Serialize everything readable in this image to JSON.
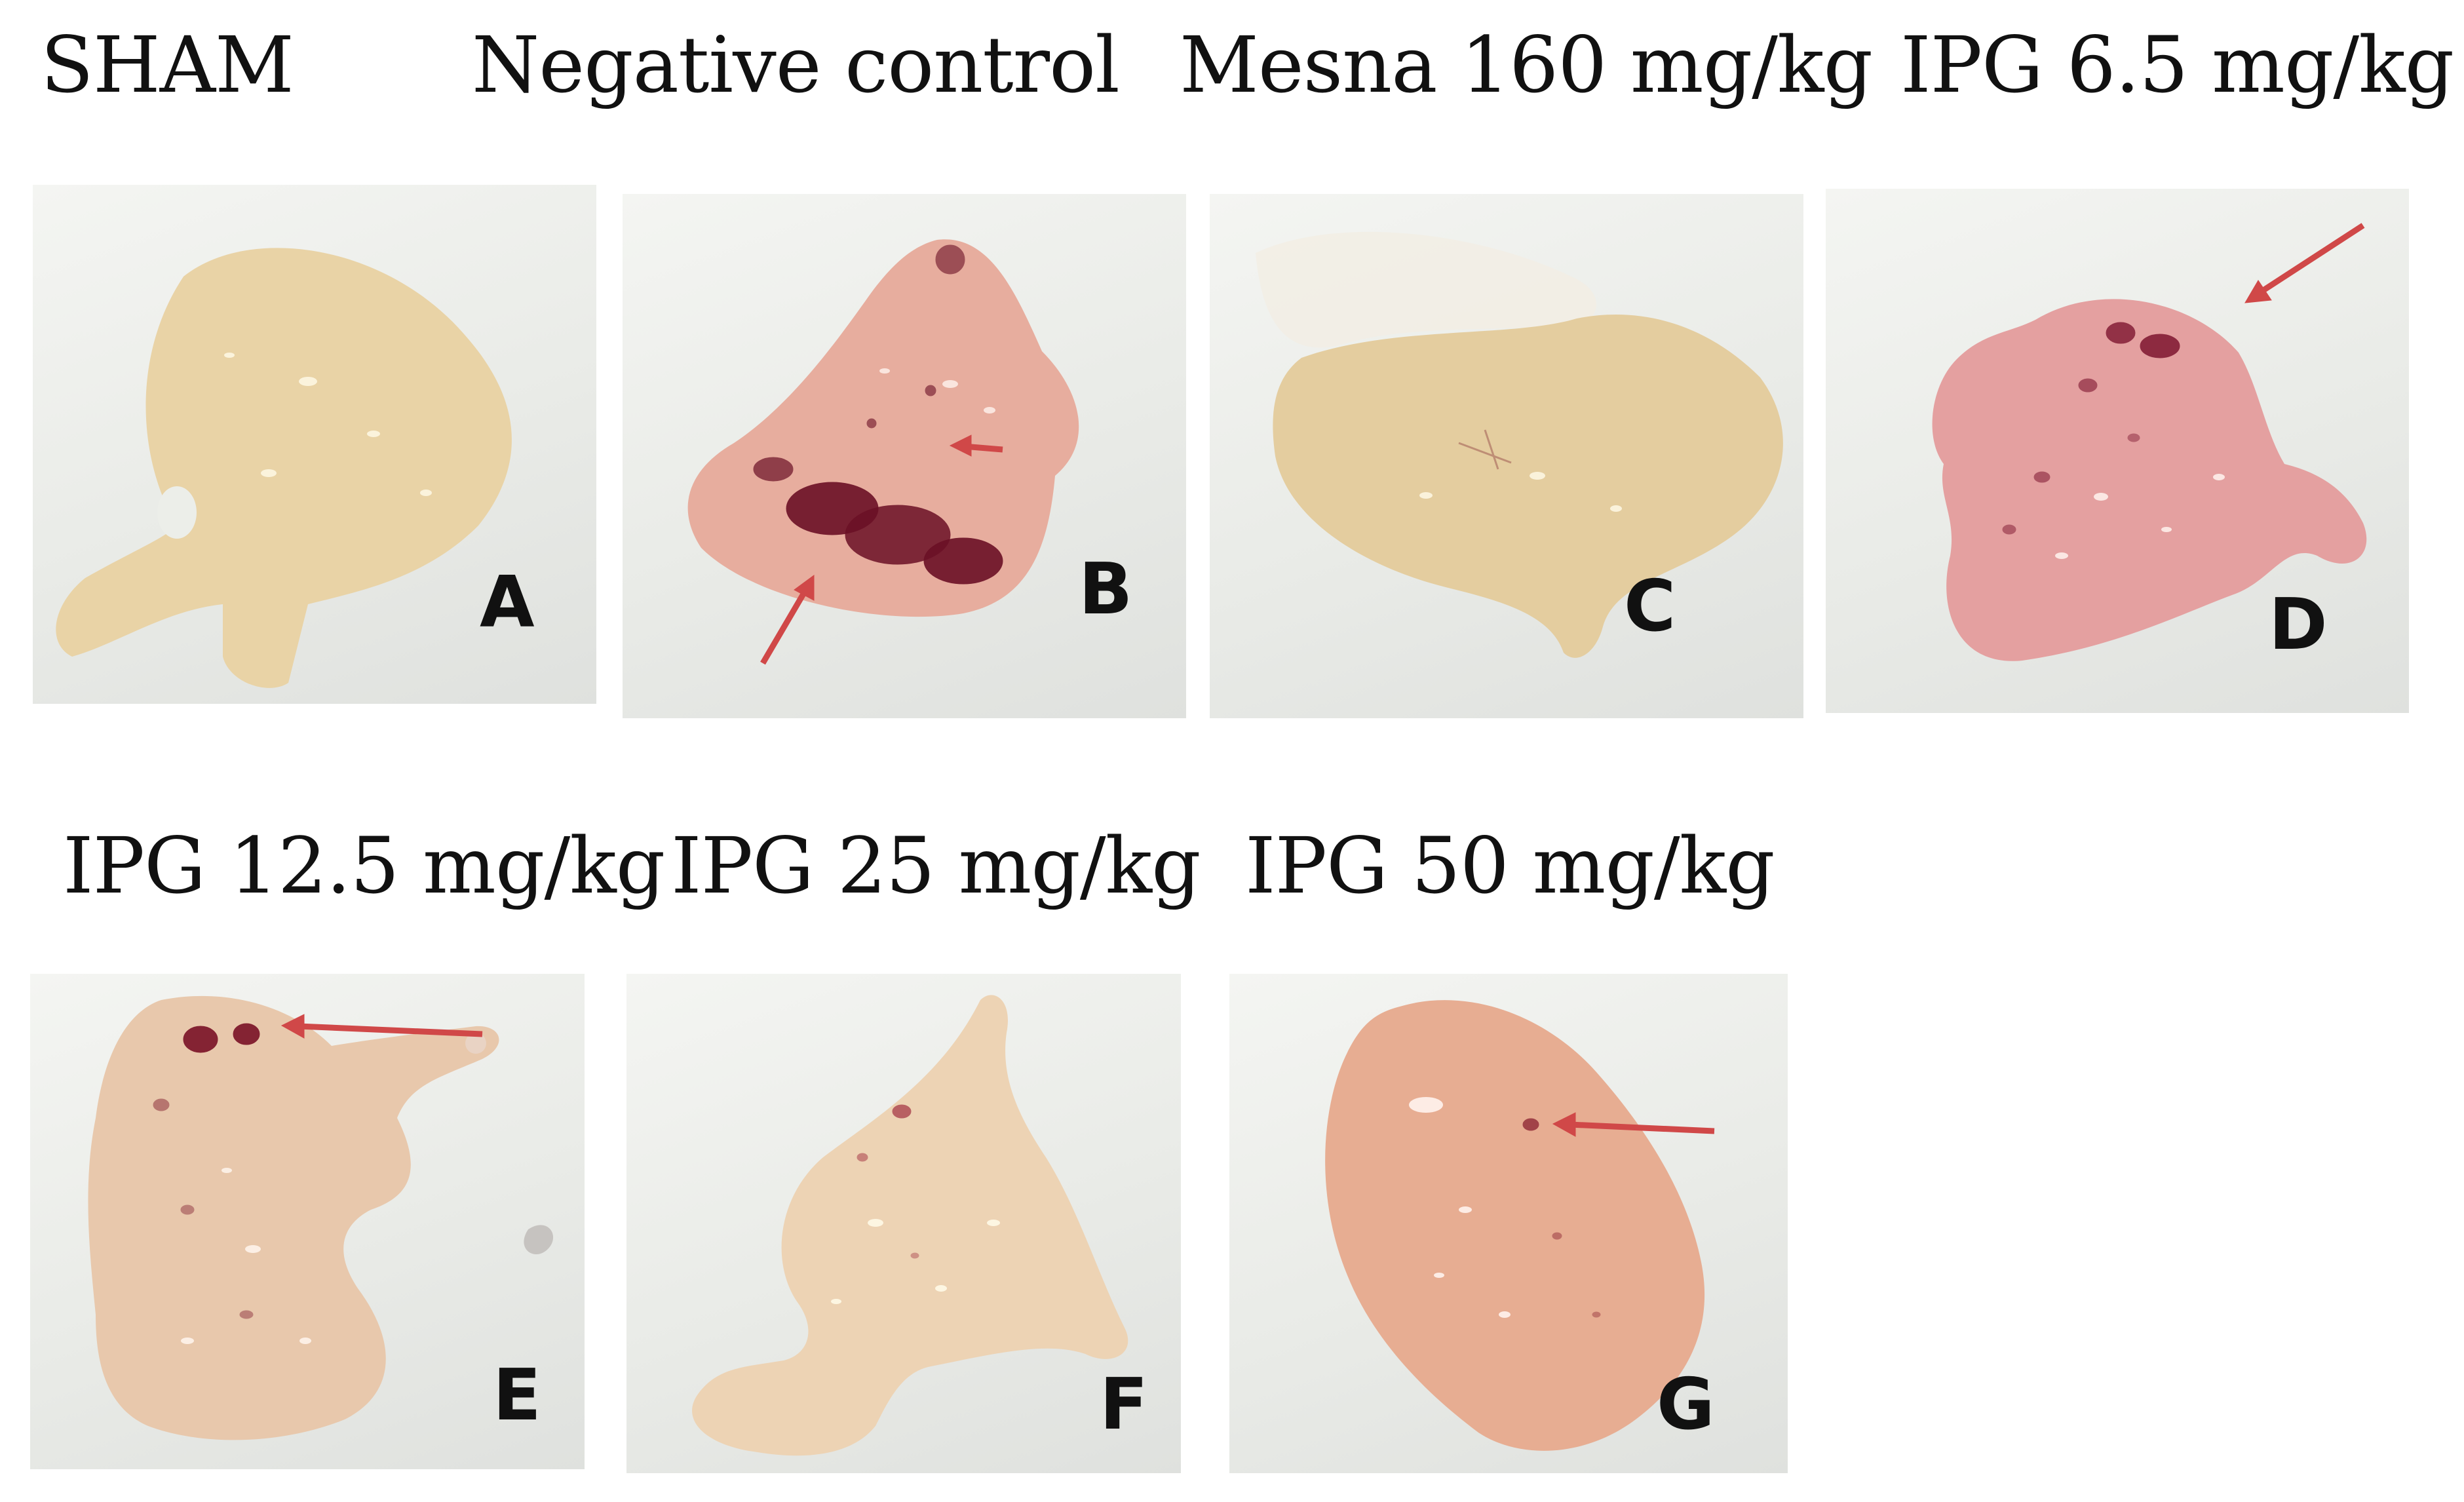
{
  "figure": {
    "row1": [
      {
        "group": "SHAM",
        "letter": "A",
        "tissue_color": "#e9d3a6",
        "lesion_color": "#7a1a2a",
        "arrow_color": "#d04848"
      },
      {
        "group": "Negative control",
        "letter": "B",
        "tissue_color": "#e7ad9e",
        "lesion_color": "#6b1026",
        "arrow_color": "#d04848"
      },
      {
        "group": "Mesna 160 mg/kg",
        "letter": "C",
        "tissue_color": "#e4cd9f",
        "lesion_color": "#7a1a2a",
        "arrow_color": "#d04848"
      },
      {
        "group": "IPG 6.5 mg/kg",
        "letter": "D",
        "tissue_color": "#e4a0a0",
        "lesion_color": "#7e1630",
        "arrow_color": "#d04848"
      }
    ],
    "row2": [
      {
        "group": "IPG 12.5 mg/kg",
        "letter": "E",
        "tissue_color": "#e8c8ac",
        "lesion_color": "#7a1226",
        "arrow_color": "#d04848"
      },
      {
        "group": "IPG 25 mg/kg",
        "letter": "F",
        "tissue_color": "#edd3b4",
        "lesion_color": "#a23040",
        "arrow_color": "#d04848"
      },
      {
        "group": "IPG 50 mg/kg",
        "letter": "G",
        "tissue_color": "#e7ad92",
        "lesion_color": "#8a2030",
        "arrow_color": "#d04848"
      }
    ]
  }
}
